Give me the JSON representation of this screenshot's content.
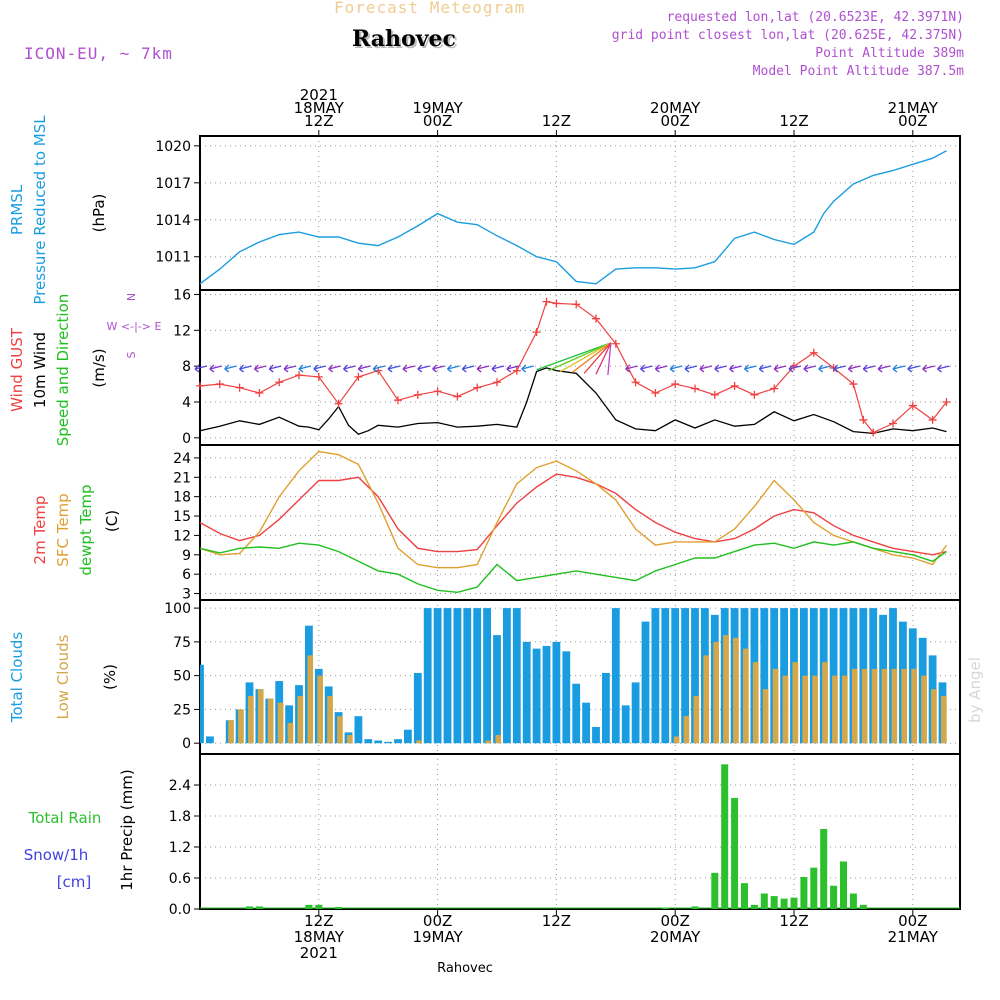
{
  "header": {
    "subtitle": "Forecast Meteogram",
    "location": "Rahovec",
    "model": "ICON-EU, ~ 7km",
    "requested": "requested lon,lat (20.6523E, 42.3971N)",
    "gridpoint": "grid point closest lon,lat (20.625E, 42.375N)",
    "point_alt": "Point Altitude 389m",
    "model_alt": "Model Point Altitude 387.5m",
    "signature": "by Angel",
    "footer": "Rahovec"
  },
  "colors": {
    "pressure": "#1a9de0",
    "wind10m": "#000000",
    "gust": "#f04040",
    "temp": "#f04040",
    "sfc": "#e0a030",
    "dewpt": "#20c020",
    "total_clouds": "#1a9de0",
    "low_clouds": "#d4a84a",
    "rain": "#2cc02c",
    "snow": "#4040e0",
    "magenta": "#b050d0"
  },
  "time_axis": {
    "top_labels": [
      {
        "t": 12,
        "lines": [
          "2021",
          "18MAY",
          "12Z"
        ]
      },
      {
        "t": 24,
        "lines": [
          "19MAY",
          "00Z"
        ]
      },
      {
        "t": 36,
        "lines": [
          "12Z"
        ]
      },
      {
        "t": 48,
        "lines": [
          "20MAY",
          "00Z"
        ]
      },
      {
        "t": 60,
        "lines": [
          "12Z"
        ]
      },
      {
        "t": 72,
        "lines": [
          "21MAY",
          "00Z"
        ]
      }
    ],
    "bottom_labels": [
      {
        "t": 12,
        "lines": [
          "12Z",
          "18MAY",
          "2021"
        ]
      },
      {
        "t": 24,
        "lines": [
          "00Z",
          "19MAY"
        ]
      },
      {
        "t": 36,
        "lines": [
          "12Z"
        ]
      },
      {
        "t": 48,
        "lines": [
          "00Z",
          "20MAY"
        ]
      },
      {
        "t": 60,
        "lines": [
          "12Z"
        ]
      },
      {
        "t": 72,
        "lines": [
          "00Z",
          "21MAY"
        ]
      }
    ]
  },
  "panel_labels": {
    "pressure": {
      "lines": [
        "PRMSL",
        "Pressure Reduced to MSL"
      ],
      "unit": "(hPa)"
    },
    "wind": {
      "lines": [
        "Wind GUST",
        "10m Wind",
        "Speed and Direction"
      ],
      "unit": "(m/s)",
      "compass": "N / W <-|-> E / S"
    },
    "temp": {
      "lines": [
        "2m Temp",
        "SFC Temp",
        "dewpt Temp"
      ],
      "unit": "(C)"
    },
    "clouds": {
      "lines": [
        "Total Clouds",
        "Low Clouds"
      ],
      "unit": "(%)"
    },
    "precip": {
      "title": "1hr Precip (mm)",
      "rain": "Total  Rain",
      "snow": "Snow/1h",
      "snow_unit": "[cm]"
    }
  },
  "chart_data": [
    {
      "type": "line",
      "title": "Pressure Reduced to MSL",
      "ylabel": "(hPa)",
      "x_unit": "hours from 2021-05-18 00Z",
      "ylim": [
        1008.3,
        1020.8
      ],
      "yticks": [
        1011,
        1014,
        1017,
        1020
      ],
      "grid": true,
      "series": [
        {
          "name": "PRMSL",
          "x": [
            0,
            2,
            4,
            6,
            8,
            10,
            12,
            14,
            16,
            18,
            20,
            22,
            24,
            26,
            28,
            30,
            32,
            34,
            36,
            38,
            40,
            42,
            44,
            46,
            48,
            50,
            52,
            54,
            56,
            58,
            60,
            62,
            63,
            64,
            66,
            68,
            70,
            72,
            74,
            75.4
          ],
          "values": [
            1008.8,
            1010.0,
            1011.4,
            1012.2,
            1012.8,
            1013.0,
            1012.6,
            1012.6,
            1012.1,
            1011.9,
            1012.6,
            1013.5,
            1014.5,
            1013.8,
            1013.6,
            1012.7,
            1011.9,
            1011.0,
            1010.6,
            1009.0,
            1008.8,
            1010.0,
            1010.1,
            1010.1,
            1010.0,
            1010.1,
            1010.6,
            1012.5,
            1013.0,
            1012.4,
            1012.0,
            1013.0,
            1014.5,
            1015.5,
            1016.9,
            1017.6,
            1018.0,
            1018.5,
            1019.0,
            1019.6
          ]
        }
      ]
    },
    {
      "type": "line",
      "title": "Wind GUST / 10m Wind Speed and Direction",
      "ylabel": "(m/s)",
      "x_unit": "hours from 2021-05-18 00Z",
      "ylim": [
        -0.8,
        16.5
      ],
      "yticks": [
        0,
        4,
        8,
        12,
        16
      ],
      "grid": true,
      "series": [
        {
          "name": "Wind GUST",
          "x": [
            0,
            2,
            4,
            6,
            8,
            10,
            12,
            14,
            16,
            18,
            20,
            22,
            24,
            26,
            28,
            30,
            32,
            34,
            35,
            36,
            38,
            40,
            42,
            44,
            46,
            48,
            50,
            52,
            54,
            56,
            58,
            60,
            62,
            64,
            66,
            67,
            68,
            70,
            72,
            74,
            75.4
          ],
          "values": [
            5.8,
            6.0,
            5.6,
            5.0,
            6.2,
            7.0,
            6.8,
            3.8,
            6.8,
            7.5,
            4.2,
            4.8,
            5.2,
            4.6,
            5.6,
            6.2,
            7.5,
            11.8,
            15.2,
            15.0,
            14.9,
            13.3,
            10.5,
            6.2,
            5.0,
            6.0,
            5.5,
            4.8,
            5.8,
            4.8,
            5.5,
            8.0,
            9.5,
            7.8,
            6.0,
            2.0,
            0.6,
            1.6,
            3.6,
            2.0,
            4.0
          ]
        },
        {
          "name": "10m Wind",
          "x": [
            0,
            2,
            4,
            6,
            8,
            10,
            11,
            12,
            13,
            14,
            15,
            16,
            17,
            18,
            20,
            22,
            24,
            26,
            28,
            30,
            32,
            33,
            34,
            35,
            36,
            38,
            40,
            42,
            44,
            46,
            48,
            50,
            52,
            54,
            56,
            58,
            60,
            62,
            64,
            66,
            68,
            70,
            72,
            74,
            75.4
          ],
          "values": [
            0.8,
            1.3,
            1.9,
            1.5,
            2.3,
            1.3,
            1.2,
            0.9,
            2.1,
            3.5,
            1.4,
            0.4,
            0.8,
            1.4,
            1.2,
            1.6,
            1.7,
            1.2,
            1.3,
            1.5,
            1.2,
            4.0,
            7.4,
            7.8,
            7.5,
            7.2,
            5.0,
            2.0,
            1.0,
            0.8,
            2.0,
            1.1,
            2.0,
            1.3,
            1.5,
            2.9,
            1.9,
            2.6,
            1.8,
            0.7,
            0.5,
            1.0,
            0.8,
            1.1,
            0.7
          ]
        }
      ],
      "wind_arrows": {
        "y_level": 7.8,
        "note": "10m wind direction arrows"
      }
    },
    {
      "type": "line",
      "title": "2m Temp / SFC Temp / dewpt Temp",
      "ylabel": "(C)",
      "x_unit": "hours from 2021-05-18 00Z",
      "ylim": [
        2.0,
        26.0
      ],
      "yticks": [
        3,
        6,
        9,
        12,
        15,
        18,
        21,
        24
      ],
      "grid": true,
      "series": [
        {
          "name": "2m Temp",
          "x": [
            0,
            2,
            4,
            6,
            8,
            10,
            12,
            14,
            16,
            18,
            20,
            22,
            24,
            26,
            28,
            30,
            32,
            34,
            36,
            38,
            40,
            42,
            44,
            46,
            48,
            50,
            52,
            54,
            56,
            58,
            60,
            62,
            64,
            66,
            68,
            70,
            72,
            74,
            75.4
          ],
          "values": [
            14.0,
            12.3,
            11.2,
            12.0,
            14.5,
            17.5,
            20.5,
            20.5,
            21.0,
            18.0,
            13.0,
            10.0,
            9.5,
            9.5,
            9.8,
            13.5,
            17.0,
            19.5,
            21.5,
            21.0,
            20.0,
            18.5,
            16.0,
            14.0,
            12.5,
            11.5,
            11.0,
            11.5,
            13.0,
            15.0,
            16.0,
            15.5,
            13.5,
            12.0,
            11.0,
            10.0,
            9.5,
            9.0,
            9.5
          ]
        },
        {
          "name": "SFC Temp",
          "x": [
            0,
            2,
            4,
            6,
            8,
            10,
            12,
            14,
            16,
            18,
            20,
            22,
            24,
            26,
            28,
            30,
            32,
            34,
            36,
            38,
            40,
            42,
            44,
            46,
            48,
            50,
            52,
            54,
            56,
            58,
            60,
            62,
            64,
            66,
            68,
            70,
            72,
            74,
            75.4
          ],
          "values": [
            10.0,
            9.0,
            9.2,
            12.5,
            18.0,
            22.0,
            25.0,
            24.5,
            23.0,
            17.0,
            10.0,
            7.5,
            7.0,
            7.0,
            7.5,
            14.0,
            20.0,
            22.5,
            23.5,
            22.0,
            20.0,
            17.5,
            13.0,
            10.5,
            11.0,
            11.0,
            11.0,
            13.0,
            16.5,
            20.5,
            17.5,
            14.0,
            12.0,
            11.0,
            10.0,
            9.0,
            8.5,
            7.5,
            10.5
          ]
        },
        {
          "name": "dewpt Temp",
          "x": [
            0,
            2,
            4,
            6,
            8,
            10,
            12,
            14,
            16,
            18,
            20,
            22,
            24,
            26,
            28,
            30,
            32,
            34,
            36,
            38,
            40,
            42,
            44,
            46,
            48,
            50,
            52,
            54,
            56,
            58,
            60,
            62,
            64,
            66,
            68,
            70,
            72,
            74,
            75.4
          ],
          "values": [
            10.0,
            9.3,
            10.0,
            10.2,
            10.0,
            10.8,
            10.5,
            9.5,
            8.0,
            6.5,
            6.0,
            4.5,
            3.5,
            3.2,
            4.0,
            7.5,
            5.0,
            5.5,
            6.0,
            6.5,
            6.0,
            5.5,
            5.0,
            6.5,
            7.5,
            8.5,
            8.5,
            9.5,
            10.5,
            10.8,
            10.0,
            11.0,
            10.5,
            11.0,
            10.0,
            9.5,
            9.0,
            8.0,
            9.5
          ]
        }
      ]
    },
    {
      "type": "bar",
      "title": "Total Clouds / Low Clouds",
      "ylabel": "(%)",
      "x_unit": "hours from 2021-05-18 00Z",
      "ylim": [
        -8,
        106
      ],
      "yticks": [
        0,
        25,
        50,
        75,
        100
      ],
      "grid": true,
      "x": [
        0,
        1,
        2,
        3,
        4,
        5,
        6,
        7,
        8,
        9,
        10,
        11,
        12,
        13,
        14,
        15,
        16,
        17,
        18,
        19,
        20,
        21,
        22,
        23,
        24,
        25,
        26,
        27,
        28,
        29,
        30,
        31,
        32,
        33,
        34,
        35,
        36,
        37,
        38,
        39,
        40,
        41,
        42,
        43,
        44,
        45,
        46,
        47,
        48,
        49,
        50,
        51,
        52,
        53,
        54,
        55,
        56,
        57,
        58,
        59,
        60,
        61,
        62,
        63,
        64,
        65,
        66,
        67,
        68,
        69,
        70,
        71,
        72,
        73,
        74,
        75
      ],
      "series": [
        {
          "name": "Total Clouds",
          "values": [
            58,
            5,
            0,
            17,
            25,
            45,
            40,
            33,
            46,
            28,
            43,
            87,
            55,
            42,
            23,
            8,
            20,
            3,
            2,
            1,
            3,
            10,
            52,
            100,
            100,
            100,
            100,
            100,
            100,
            100,
            80,
            100,
            100,
            75,
            70,
            72,
            75,
            68,
            44,
            30,
            12,
            52,
            100,
            28,
            45,
            90,
            100,
            100,
            100,
            100,
            100,
            100,
            95,
            100,
            100,
            100,
            100,
            100,
            100,
            100,
            100,
            100,
            100,
            100,
            100,
            100,
            100,
            100,
            100,
            95,
            100,
            90,
            85,
            78,
            65,
            45
          ]
        },
        {
          "name": "Low Clouds",
          "values": [
            0,
            0,
            0,
            17,
            25,
            35,
            40,
            33,
            30,
            15,
            35,
            65,
            50,
            35,
            20,
            6,
            0,
            0,
            0,
            0,
            0,
            0,
            2,
            0,
            0,
            0,
            0,
            0,
            0,
            2,
            6,
            0,
            0,
            0,
            0,
            0,
            0,
            0,
            0,
            0,
            0,
            0,
            0,
            0,
            0,
            0,
            0,
            0,
            5,
            20,
            35,
            65,
            75,
            80,
            78,
            70,
            60,
            40,
            55,
            50,
            60,
            50,
            50,
            60,
            50,
            50,
            55,
            55,
            55,
            55,
            55,
            55,
            55,
            50,
            40,
            35
          ]
        }
      ]
    },
    {
      "type": "bar",
      "title": "1hr Precip (mm)",
      "ylabel": "1hr Precip (mm)",
      "x_unit": "hours from 2021-05-18 00Z",
      "ylim": [
        0,
        3.0
      ],
      "yticks": [
        0,
        0.6,
        1.2,
        1.8,
        2.4
      ],
      "grid": true,
      "series": [
        {
          "name": "Total Rain",
          "x": [
            5,
            6,
            11,
            12,
            14,
            47,
            50,
            52,
            53,
            54,
            55,
            56,
            57,
            58,
            59,
            60,
            61,
            62,
            63,
            64,
            65,
            66,
            67
          ],
          "values": [
            0.05,
            0.05,
            0.08,
            0.08,
            0.04,
            0.02,
            0.05,
            0.7,
            2.8,
            2.15,
            0.5,
            0.08,
            0.3,
            0.25,
            0.2,
            0.22,
            0.62,
            0.8,
            1.55,
            0.45,
            0.92,
            0.3,
            0.08
          ]
        }
      ]
    }
  ]
}
